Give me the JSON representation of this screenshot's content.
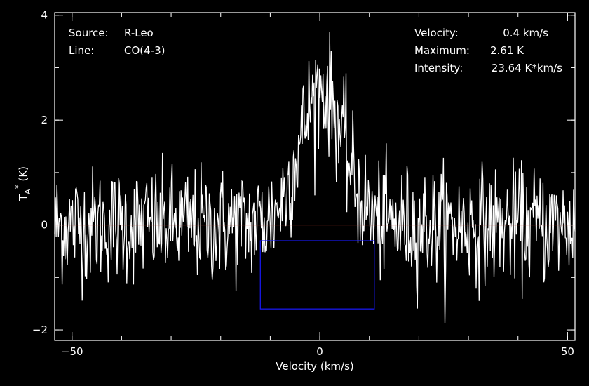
{
  "chart_data": {
    "type": "line",
    "xlabel": "Velocity (km/s)",
    "ylabel": {
      "main": "T",
      "sub": "A",
      "sup": "*",
      "unit": " (K)"
    },
    "xlim": [
      -53.5,
      51.5
    ],
    "ylim": [
      -2.2,
      4.05
    ],
    "xticks": [
      {
        "v": -50,
        "label": "−50"
      },
      {
        "v": 0,
        "label": "0"
      },
      {
        "v": 50,
        "label": "50"
      }
    ],
    "yticks": [
      {
        "v": -2,
        "label": "−2"
      },
      {
        "v": 0,
        "label": "0"
      },
      {
        "v": 2,
        "label": "2"
      },
      {
        "v": 4,
        "label": "4"
      }
    ],
    "x_minor_step": 10,
    "y_minor_step": 1,
    "zero_line_color": "#c0392b",
    "spectrum_color": "#ffffff",
    "window_color": "#1a1aff",
    "integration_window": {
      "x": [
        -12,
        11
      ],
      "y": [
        -1.6,
        -0.3
      ]
    },
    "line_profile": {
      "center": 0.4,
      "peak": 2.61,
      "halfwidth": 7.0
    },
    "noise_sigma": 0.55,
    "channel_width": 0.15,
    "annotations_left": [
      {
        "key": "Source:",
        "value": "R-Leo"
      },
      {
        "key": "Line:",
        "value": "CO(4-3)"
      }
    ],
    "annotations_right": [
      {
        "key": "Velocity:",
        "value": "0.4 km/s"
      },
      {
        "key": "Maximum:",
        "value": "2.61 K"
      },
      {
        "key": "Intensity:",
        "value": "23.64 K*km/s"
      }
    ]
  }
}
